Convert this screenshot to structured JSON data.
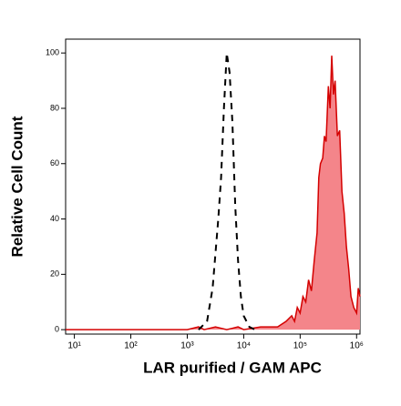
{
  "chart_data": {
    "type": "histogram-overlay",
    "x_label": "LAR purified / GAM APC",
    "y_label": "Relative Cell Count",
    "xscale": "log",
    "xlim": [
      7,
      1148154
    ],
    "ylim": [
      -1.6,
      105
    ],
    "xticks": [
      {
        "value": 10,
        "label": "10¹"
      },
      {
        "value": 100,
        "label": "10²"
      },
      {
        "value": 1000,
        "label": "10³"
      },
      {
        "value": 10000,
        "label": "10⁴"
      },
      {
        "value": 100000,
        "label": "10⁵"
      },
      {
        "value": 1000000,
        "label": "10⁶"
      }
    ],
    "yticks": [
      0,
      20,
      40,
      60,
      80,
      100
    ],
    "series": [
      {
        "color": "#d40000",
        "fill": "#f4858a",
        "style": "solid",
        "x": [
          7,
          100,
          1000,
          1585,
          1995,
          3162,
          5012,
          7943,
          10000,
          19953,
          39811,
          56234,
          70795,
          79433,
          89125,
          100000,
          112202,
          125893,
          141254,
          158489,
          177828,
          199526,
          213796,
          229087,
          251189,
          269153,
          288403,
          316228,
          338844,
          363078,
          389045,
          416869,
          457088,
          501187,
          549541,
          602560,
          660693,
          724436,
          794328,
          891251,
          1000000,
          1071519,
          1148154
        ],
        "values": [
          0,
          0,
          0,
          1,
          0,
          1,
          0,
          1,
          0,
          1,
          1,
          3,
          5,
          3,
          8,
          6,
          12,
          10,
          18,
          14,
          25,
          35,
          55,
          60,
          62,
          70,
          68,
          88,
          80,
          99,
          85,
          90,
          70,
          72,
          50,
          42,
          30,
          22,
          12,
          8,
          6,
          15,
          12
        ]
      },
      {
        "color": "#000000",
        "style": "dashed",
        "x": [
          1585,
          2239,
          2818,
          3548,
          3981,
          4467,
          5012,
          5623,
          6310,
          7079,
          7943,
          8913,
          10000,
          12589,
          15849
        ],
        "values": [
          0,
          3,
          15,
          40,
          55,
          80,
          100,
          93,
          75,
          45,
          25,
          12,
          5,
          1,
          0
        ]
      }
    ]
  }
}
